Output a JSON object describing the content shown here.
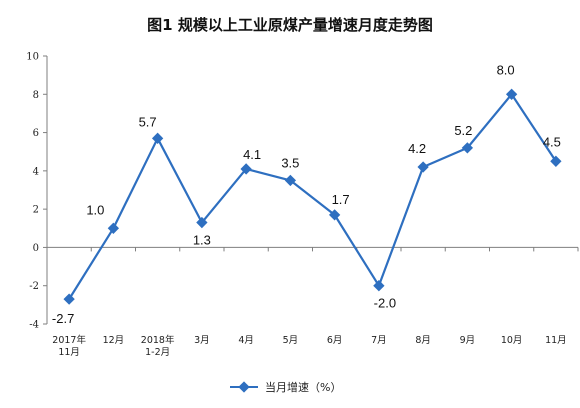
{
  "chart_data": {
    "type": "line",
    "title": "图1  规模以上工业原煤产量增速月度走势图",
    "xlabel": "",
    "ylabel": "",
    "ylim": [
      -4,
      10
    ],
    "yticks": [
      -4,
      -2,
      0,
      2,
      4,
      6,
      8,
      10
    ],
    "grid": false,
    "legend": "bottom-center",
    "categories": [
      [
        "2017年",
        "11月"
      ],
      [
        "12月"
      ],
      [
        "2018年",
        "1-2月"
      ],
      [
        "3月"
      ],
      [
        "4月"
      ],
      [
        "5月"
      ],
      [
        "6月"
      ],
      [
        "7月"
      ],
      [
        "8月"
      ],
      [
        "9月"
      ],
      [
        "10月"
      ],
      [
        "11月"
      ]
    ],
    "series": [
      {
        "name": "当月增速（%）",
        "color": "#2E6FC0",
        "values": [
          -2.7,
          1.0,
          5.7,
          1.3,
          4.1,
          3.5,
          1.7,
          -2.0,
          4.2,
          5.2,
          8.0,
          4.5
        ],
        "labels": [
          "-2.7",
          "1.0",
          "5.7",
          "1.3",
          "4.1",
          "3.5",
          "1.7",
          "-2.0",
          "4.2",
          "5.2",
          "8.0",
          "4.5"
        ]
      }
    ]
  }
}
